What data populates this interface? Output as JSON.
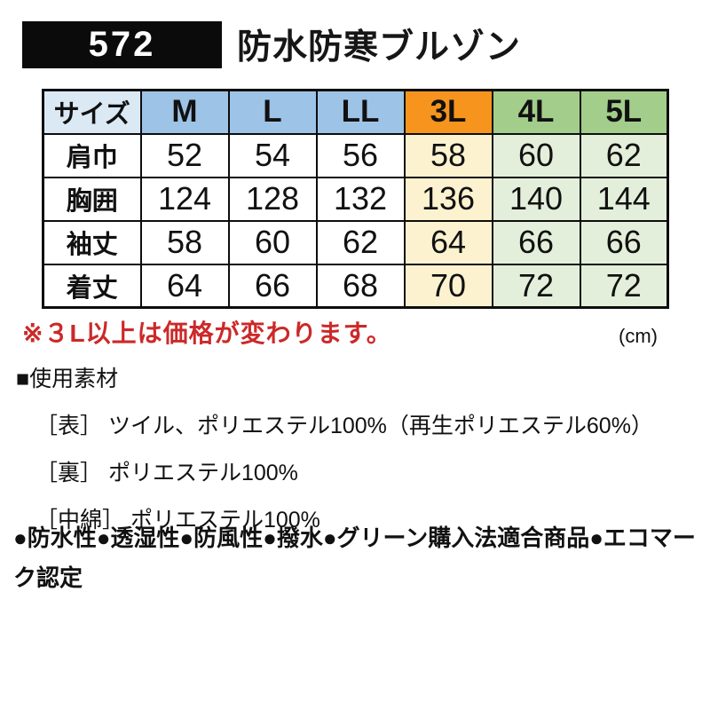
{
  "header": {
    "product_code": "572",
    "title": "防水防寒ブルゾン"
  },
  "size_table": {
    "corner_label": "サイズ",
    "col_headers": [
      "M",
      "L",
      "LL",
      "3L",
      "4L",
      "5L"
    ],
    "rows": [
      {
        "label": "肩巾",
        "values": [
          "52",
          "54",
          "56",
          "58",
          "60",
          "62"
        ]
      },
      {
        "label": "胸囲",
        "values": [
          "124",
          "128",
          "132",
          "136",
          "140",
          "144"
        ]
      },
      {
        "label": "袖丈",
        "values": [
          "58",
          "60",
          "62",
          "64",
          "66",
          "66"
        ]
      },
      {
        "label": "着丈",
        "values": [
          "64",
          "66",
          "68",
          "70",
          "72",
          "72"
        ]
      }
    ],
    "unit_label": "(cm)"
  },
  "price_note": "※３L以上は価格が変わります。",
  "materials": {
    "heading": "■使用素材",
    "items": [
      "［表］ ツイル、ポリエステル100%（再生ポリエステル60%）",
      "［裏］ ポリエステル100%",
      "［中綿］ ポリエステル100%"
    ]
  },
  "features": "●防水性●透湿性●防風性●撥水●グリーン購入法適合商品●エコマーク認定",
  "colors": {
    "header_blue": "#9dc3e6",
    "corner_blue": "#dbe9f5",
    "header_orange": "#f7941d",
    "header_green": "#a3cd8a",
    "cell_cream": "#fcf2d0",
    "cell_green": "#e3efda",
    "note_red": "#cc2929"
  }
}
